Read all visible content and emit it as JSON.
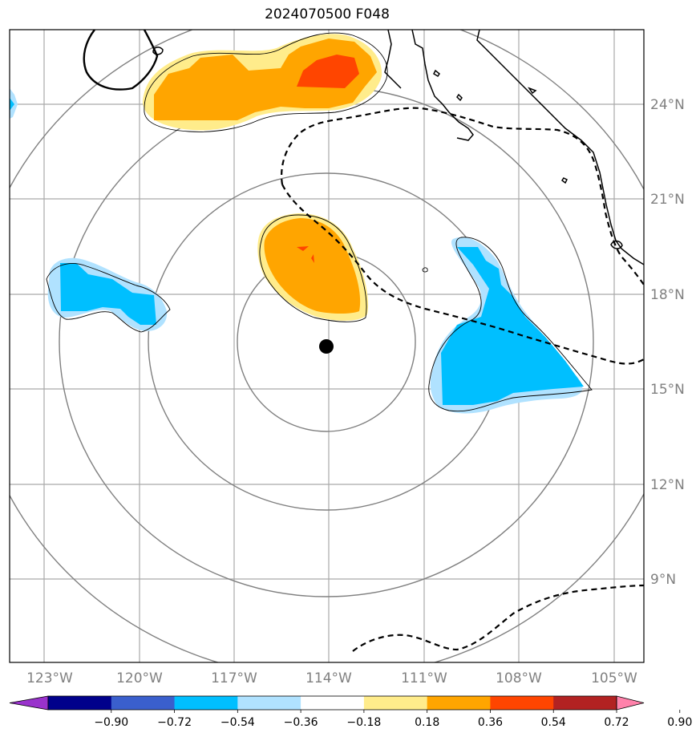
{
  "title": "2024070500 F048",
  "lon_labels": [
    "123°W",
    "120°W",
    "117°W",
    "114°W",
    "111°W",
    "108°W",
    "105°W"
  ],
  "lat_labels": [
    "24°N",
    "21°N",
    "18°N",
    "15°N",
    "12°N",
    "9°N"
  ],
  "colorbar": {
    "ticks": [
      "−0.90",
      "−0.72",
      "−0.54",
      "−0.36",
      "−0.18",
      "0.18",
      "0.36",
      "0.54",
      "0.72",
      "0.90"
    ],
    "colors": [
      "#9932cc",
      "#00008b",
      "#3a5fcd",
      "#00bfff",
      "#b0e2ff",
      "#ffffff",
      "#ffec8b",
      "#ffa500",
      "#ff4500",
      "#b22222",
      "#ff82ab"
    ]
  },
  "center_marker": {
    "lon": -114.0,
    "lat": 16.4
  },
  "fill_colors": {
    "light_blue": "#b0e2ff",
    "blue": "#00bfff",
    "yellow": "#ffec8b",
    "orange": "#ffa500",
    "red": "#ff4500"
  },
  "grid_color": "#a9a9a9",
  "ring_color": "#808080"
}
